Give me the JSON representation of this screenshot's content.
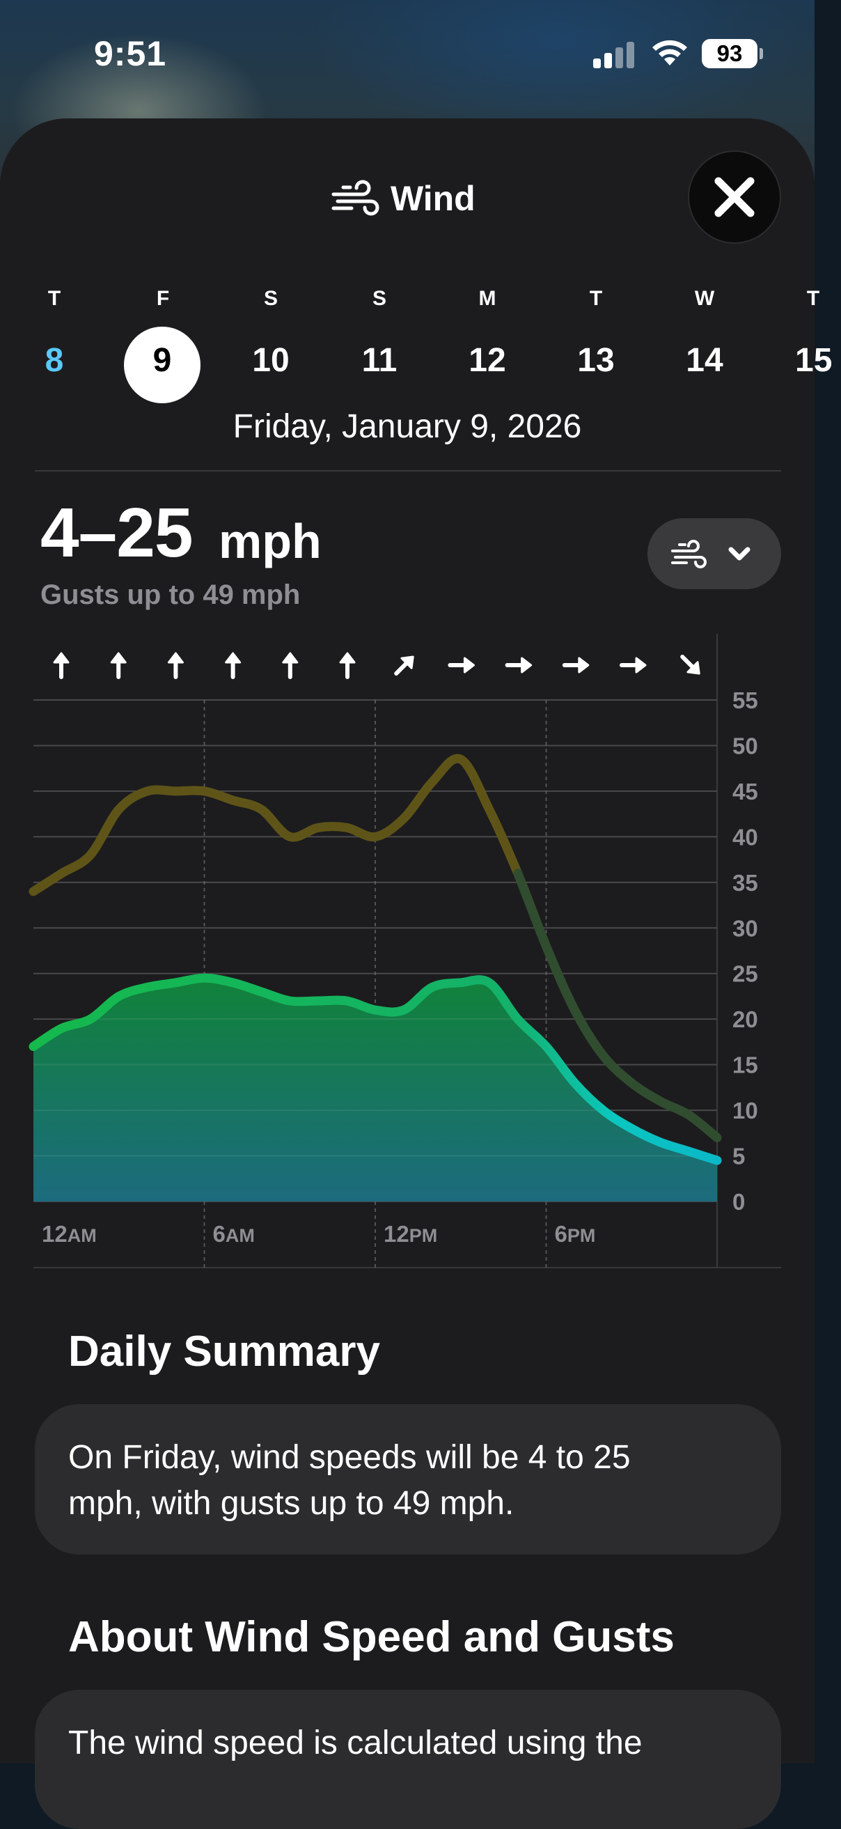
{
  "status_bar": {
    "time": "9:51",
    "battery": "93"
  },
  "header": {
    "title": "Wind",
    "title_icon": "wind-icon",
    "close_icon": "close-icon"
  },
  "days": [
    {
      "letter": "T",
      "number": "8"
    },
    {
      "letter": "F",
      "number": "9"
    },
    {
      "letter": "S",
      "number": "10"
    },
    {
      "letter": "S",
      "number": "11"
    },
    {
      "letter": "M",
      "number": "12"
    },
    {
      "letter": "T",
      "number": "13"
    },
    {
      "letter": "W",
      "number": "14"
    },
    {
      "letter": "T",
      "number": "15"
    }
  ],
  "selected_day_index": 1,
  "full_date": "Friday, January 9, 2026",
  "summary": {
    "range": "4–25",
    "unit": "mph",
    "gusts": "Gusts up to 49 mph"
  },
  "chart_data": {
    "type": "area",
    "x": [
      0,
      1,
      2,
      3,
      4,
      5,
      6,
      7,
      8,
      9,
      10,
      11,
      12,
      13,
      14,
      15,
      16,
      17,
      18,
      19,
      20,
      21,
      22,
      23,
      24
    ],
    "x_tick_labels": [
      "12AM",
      "6AM",
      "12PM",
      "6PM"
    ],
    "x_ticks": [
      0,
      6,
      12,
      18
    ],
    "ylim": [
      0,
      55
    ],
    "y_ticks": [
      0,
      5,
      10,
      15,
      20,
      25,
      30,
      35,
      40,
      45,
      50,
      55
    ],
    "series": [
      {
        "kind": "wind",
        "values": [
          17,
          19,
          20,
          22.5,
          23.5,
          24,
          24.5,
          24,
          23,
          22,
          22,
          22,
          21,
          21,
          23.5,
          24,
          24,
          20,
          17,
          13,
          10,
          8,
          6.5,
          5.5,
          4.5
        ],
        "color_top": "#15b94c",
        "color_bottom": "#0bb7c7"
      },
      {
        "kind": "gusts",
        "values": [
          34,
          36,
          38,
          43,
          45,
          45,
          45,
          44,
          43,
          40,
          41,
          41,
          40,
          42,
          46,
          48.5,
          43,
          36,
          28,
          21,
          16,
          13,
          11,
          9.5,
          7
        ],
        "color": "#5f5418"
      }
    ],
    "direction_arrows": [
      "up",
      "up",
      "up",
      "up",
      "up",
      "up",
      "up-right",
      "right",
      "right",
      "right",
      "right",
      "down-right"
    ],
    "grid": true
  },
  "sections": [
    {
      "title": "Daily Summary",
      "text": "On Friday, wind speeds will be 4 to 25 mph, with gusts up to 49 mph."
    },
    {
      "title": "About Wind Speed and Gusts",
      "text": "The wind speed is calculated using the"
    }
  ]
}
